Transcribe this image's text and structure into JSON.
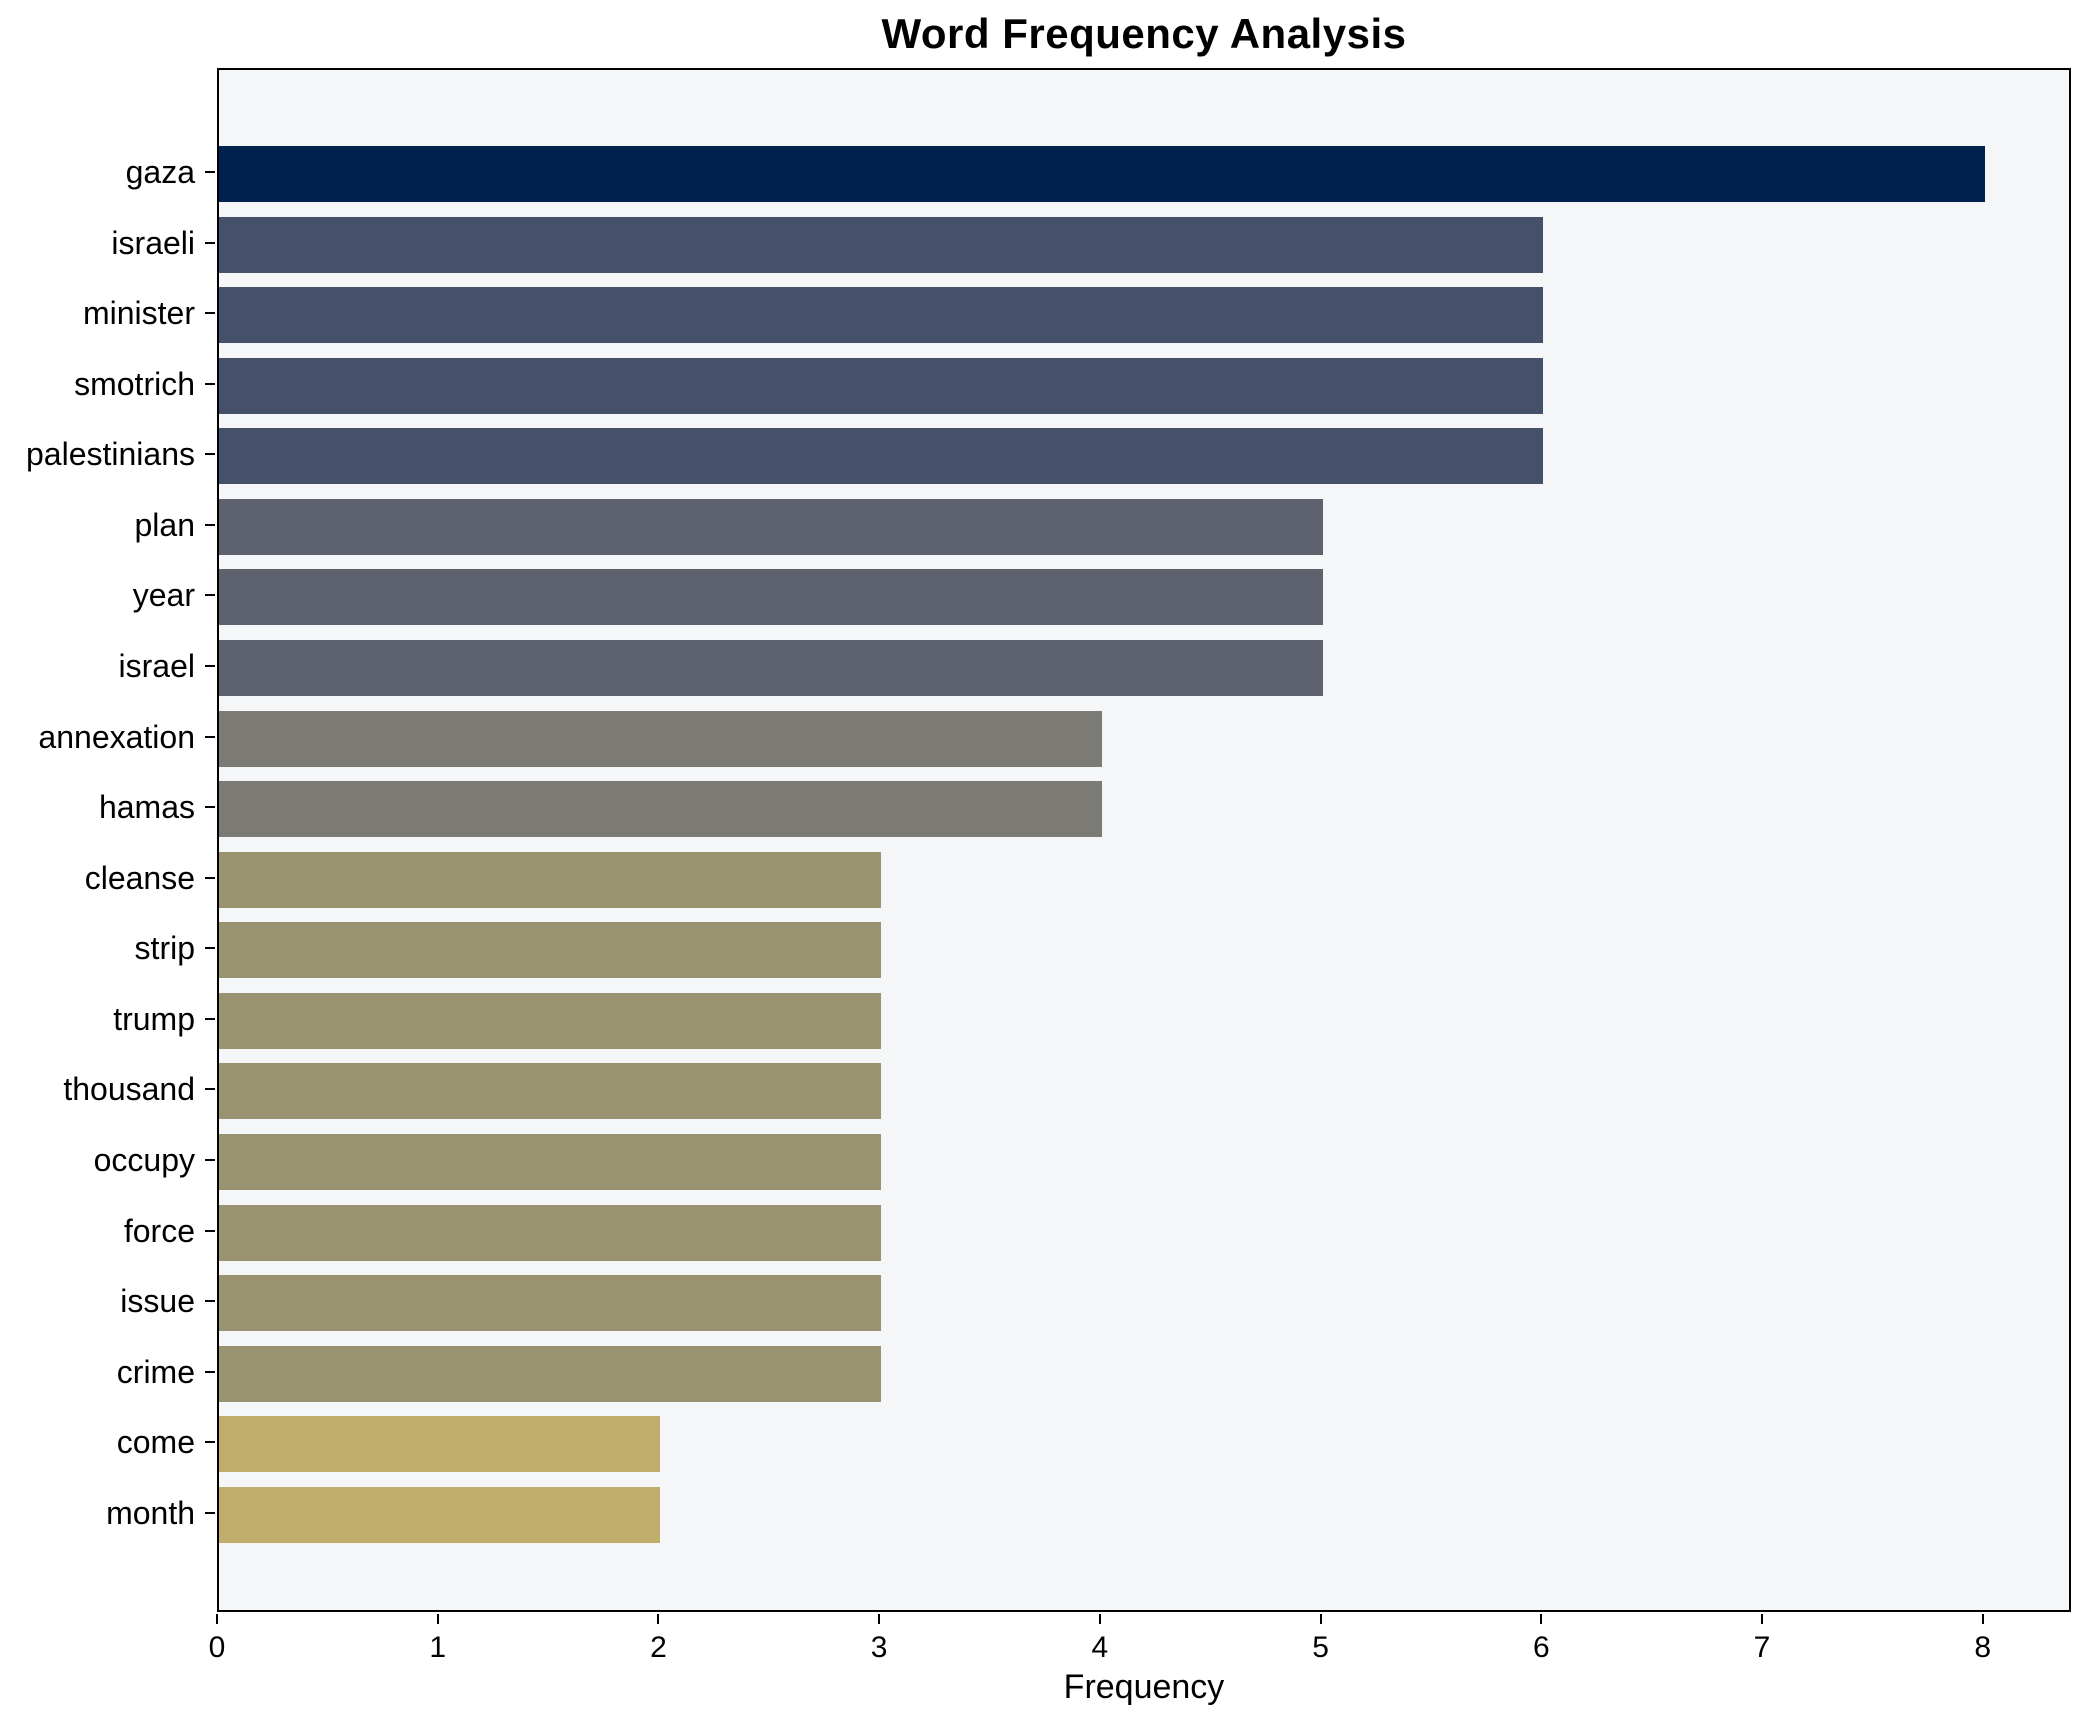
{
  "chart_data": {
    "type": "bar",
    "orientation": "horizontal",
    "title": "Word Frequency Analysis",
    "xlabel": "Frequency",
    "ylabel": "",
    "categories": [
      "gaza",
      "israeli",
      "minister",
      "smotrich",
      "palestinians",
      "plan",
      "year",
      "israel",
      "annexation",
      "hamas",
      "cleanse",
      "strip",
      "trump",
      "thousand",
      "occupy",
      "force",
      "issue",
      "crime",
      "come",
      "month"
    ],
    "values": [
      8,
      6,
      6,
      6,
      6,
      5,
      5,
      5,
      4,
      4,
      3,
      3,
      3,
      3,
      3,
      3,
      3,
      3,
      2,
      2
    ],
    "bar_colors": [
      "#00224e",
      "#45506b",
      "#45506b",
      "#45506b",
      "#45506b",
      "#5e626e",
      "#5e626e",
      "#5e626e",
      "#7b7a75",
      "#7b7a75",
      "#999372",
      "#999372",
      "#999372",
      "#999372",
      "#999372",
      "#999372",
      "#999372",
      "#999372",
      "#c0ad6c",
      "#c0ad6c"
    ],
    "xticks": [
      0,
      1,
      2,
      3,
      4,
      5,
      6,
      7,
      8
    ],
    "xlim": [
      0,
      8.4
    ],
    "grid": false,
    "legend": "none",
    "plot_background": "#f5f6f7",
    "figure_background": "#ffffff",
    "spine_color": "#000000"
  }
}
